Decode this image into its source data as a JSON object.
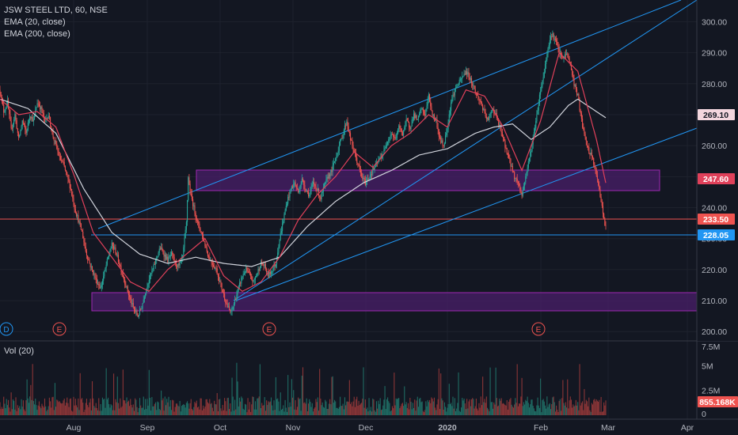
{
  "legend": {
    "symbol": "JSW STEEL LTD, 60, NSE",
    "ema20": "EMA (20, close)",
    "ema200": "EMA (200, close)",
    "volume": "Vol (20)"
  },
  "chart_data": {
    "type": "candlestick",
    "symbol": "JSW STEEL LTD",
    "interval": "60",
    "exchange": "NSE",
    "price_axis": {
      "ylim": [
        197,
        307
      ],
      "ticks": [
        200,
        210,
        220,
        230,
        240,
        250,
        260,
        270,
        280,
        290,
        300
      ],
      "tick_labels": [
        "200.00",
        "210.00",
        "220.00",
        "230.00",
        "240.00",
        "250.00",
        "260.00",
        "270.00",
        "280.00",
        "290.00",
        "300.00"
      ]
    },
    "volume_axis": {
      "ylim": [
        0,
        7.5
      ],
      "ticks": [
        0,
        2.5,
        5,
        7.5
      ],
      "tick_labels": [
        "0",
        "2.5M",
        "5M",
        "7.5M"
      ]
    },
    "time_axis": {
      "labels": [
        "Aug",
        "Sep",
        "Oct",
        "Nov",
        "Dec",
        "2020",
        "Feb",
        "Mar",
        "Apr"
      ]
    },
    "price_path": [
      [
        0,
        278
      ],
      [
        2,
        271
      ],
      [
        4,
        274
      ],
      [
        6,
        265
      ],
      [
        8,
        270
      ],
      [
        10,
        262
      ],
      [
        12,
        268
      ],
      [
        14,
        264
      ],
      [
        16,
        270
      ],
      [
        18,
        268
      ],
      [
        20,
        274
      ],
      [
        22,
        272
      ],
      [
        24,
        268
      ],
      [
        26,
        270
      ],
      [
        28,
        264
      ],
      [
        30,
        260
      ],
      [
        32,
        256
      ],
      [
        34,
        254
      ],
      [
        36,
        250
      ],
      [
        38,
        246
      ],
      [
        40,
        240
      ],
      [
        42,
        236
      ],
      [
        44,
        232
      ],
      [
        46,
        226
      ],
      [
        48,
        222
      ],
      [
        50,
        219
      ],
      [
        52,
        216
      ],
      [
        54,
        214
      ],
      [
        56,
        219
      ],
      [
        58,
        224
      ],
      [
        60,
        228
      ],
      [
        62,
        226
      ],
      [
        64,
        222
      ],
      [
        66,
        218
      ],
      [
        68,
        214
      ],
      [
        70,
        210
      ],
      [
        72,
        207
      ],
      [
        74,
        205
      ],
      [
        76,
        208
      ],
      [
        78,
        213
      ],
      [
        80,
        217
      ],
      [
        82,
        220
      ],
      [
        84,
        224
      ],
      [
        86,
        227
      ],
      [
        88,
        225
      ],
      [
        90,
        223
      ],
      [
        92,
        225
      ],
      [
        94,
        222
      ],
      [
        96,
        221
      ],
      [
        98,
        224
      ],
      [
        100,
        235
      ],
      [
        101,
        250
      ],
      [
        102,
        245
      ],
      [
        104,
        240
      ],
      [
        106,
        235
      ],
      [
        108,
        232
      ],
      [
        110,
        228
      ],
      [
        112,
        224
      ],
      [
        114,
        222
      ],
      [
        116,
        220
      ],
      [
        118,
        216
      ],
      [
        120,
        212
      ],
      [
        122,
        208
      ],
      [
        124,
        206
      ],
      [
        126,
        210
      ],
      [
        128,
        214
      ],
      [
        130,
        218
      ],
      [
        132,
        220
      ],
      [
        134,
        218
      ],
      [
        136,
        216
      ],
      [
        138,
        219
      ],
      [
        140,
        222
      ],
      [
        142,
        221
      ],
      [
        144,
        218
      ],
      [
        146,
        220
      ],
      [
        148,
        222
      ],
      [
        150,
        230
      ],
      [
        152,
        236
      ],
      [
        154,
        242
      ],
      [
        156,
        246
      ],
      [
        158,
        248
      ],
      [
        160,
        245
      ],
      [
        162,
        249
      ],
      [
        164,
        246
      ],
      [
        166,
        244
      ],
      [
        168,
        248
      ],
      [
        170,
        246
      ],
      [
        172,
        243
      ],
      [
        174,
        247
      ],
      [
        176,
        250
      ],
      [
        178,
        252
      ],
      [
        180,
        256
      ],
      [
        182,
        260
      ],
      [
        184,
        264
      ],
      [
        186,
        268
      ],
      [
        188,
        262
      ],
      [
        190,
        258
      ],
      [
        192,
        254
      ],
      [
        194,
        250
      ],
      [
        196,
        248
      ],
      [
        198,
        250
      ],
      [
        200,
        252
      ],
      [
        202,
        254
      ],
      [
        204,
        256
      ],
      [
        206,
        258
      ],
      [
        208,
        262
      ],
      [
        210,
        264
      ],
      [
        212,
        262
      ],
      [
        214,
        266
      ],
      [
        216,
        264
      ],
      [
        218,
        268
      ],
      [
        220,
        266
      ],
      [
        222,
        270
      ],
      [
        224,
        268
      ],
      [
        226,
        272
      ],
      [
        228,
        270
      ],
      [
        230,
        276
      ],
      [
        232,
        270
      ],
      [
        234,
        268
      ],
      [
        236,
        262
      ],
      [
        238,
        260
      ],
      [
        240,
        266
      ],
      [
        242,
        274
      ],
      [
        244,
        278
      ],
      [
        246,
        280
      ],
      [
        248,
        282
      ],
      [
        250,
        284
      ],
      [
        252,
        282
      ],
      [
        254,
        279
      ],
      [
        256,
        276
      ],
      [
        258,
        274
      ],
      [
        260,
        270
      ],
      [
        262,
        268
      ],
      [
        264,
        272
      ],
      [
        266,
        270
      ],
      [
        268,
        266
      ],
      [
        270,
        262
      ],
      [
        272,
        258
      ],
      [
        274,
        254
      ],
      [
        276,
        250
      ],
      [
        278,
        248
      ],
      [
        280,
        244
      ],
      [
        282,
        250
      ],
      [
        284,
        256
      ],
      [
        286,
        262
      ],
      [
        288,
        270
      ],
      [
        290,
        278
      ],
      [
        292,
        284
      ],
      [
        294,
        292
      ],
      [
        296,
        296
      ],
      [
        298,
        294
      ],
      [
        300,
        290
      ],
      [
        302,
        288
      ],
      [
        304,
        290
      ],
      [
        306,
        286
      ],
      [
        308,
        280
      ],
      [
        310,
        276
      ],
      [
        312,
        268
      ],
      [
        314,
        262
      ],
      [
        316,
        258
      ],
      [
        318,
        256
      ],
      [
        320,
        250
      ],
      [
        321,
        248
      ],
      [
        322,
        244
      ],
      [
        323,
        240
      ],
      [
        324,
        236
      ],
      [
        325,
        233.5
      ]
    ],
    "ema20_path": [
      [
        0,
        275
      ],
      [
        10,
        270
      ],
      [
        20,
        271
      ],
      [
        30,
        266
      ],
      [
        40,
        250
      ],
      [
        50,
        232
      ],
      [
        60,
        224
      ],
      [
        70,
        216
      ],
      [
        80,
        213
      ],
      [
        90,
        220
      ],
      [
        100,
        225
      ],
      [
        110,
        230
      ],
      [
        120,
        218
      ],
      [
        130,
        213
      ],
      [
        140,
        216
      ],
      [
        150,
        224
      ],
      [
        160,
        236
      ],
      [
        170,
        244
      ],
      [
        180,
        250
      ],
      [
        190,
        258
      ],
      [
        200,
        253
      ],
      [
        210,
        260
      ],
      [
        220,
        264
      ],
      [
        230,
        270
      ],
      [
        240,
        266
      ],
      [
        250,
        278
      ],
      [
        260,
        276
      ],
      [
        270,
        266
      ],
      [
        280,
        252
      ],
      [
        290,
        268
      ],
      [
        300,
        290
      ],
      [
        310,
        284
      ],
      [
        320,
        262
      ],
      [
        325,
        248
      ]
    ],
    "ema200_path": [
      [
        0,
        275
      ],
      [
        15,
        272
      ],
      [
        30,
        264
      ],
      [
        45,
        246
      ],
      [
        60,
        232
      ],
      [
        75,
        225
      ],
      [
        90,
        222
      ],
      [
        105,
        224
      ],
      [
        120,
        222
      ],
      [
        135,
        221
      ],
      [
        150,
        224
      ],
      [
        165,
        234
      ],
      [
        180,
        242
      ],
      [
        195,
        248
      ],
      [
        210,
        252
      ],
      [
        225,
        257
      ],
      [
        240,
        259
      ],
      [
        255,
        264
      ],
      [
        265,
        266
      ],
      [
        275,
        267
      ],
      [
        285,
        262
      ],
      [
        295,
        266
      ],
      [
        305,
        273
      ],
      [
        310,
        275
      ],
      [
        320,
        271
      ],
      [
        325,
        269
      ]
    ],
    "volume_profile": "synthetic",
    "current_values": {
      "last": "233.50",
      "ema20": "247.60",
      "ema200": "269.10",
      "line": "228.05",
      "volume": "855.168K"
    },
    "earnings_markers": [
      "E",
      "E",
      "E"
    ],
    "dividend_marker": "D",
    "colors": {
      "up": "#26a69a",
      "down": "#ef5350",
      "ema20": "#e0405a",
      "ema200": "#d1d4dc",
      "trendline": "#2196f3",
      "zone_fill": "#4a1f6a",
      "zone_border": "#9c27b0",
      "hline_red": "#ef5350",
      "hline_blue": "#2196f3",
      "background": "#131722"
    }
  }
}
